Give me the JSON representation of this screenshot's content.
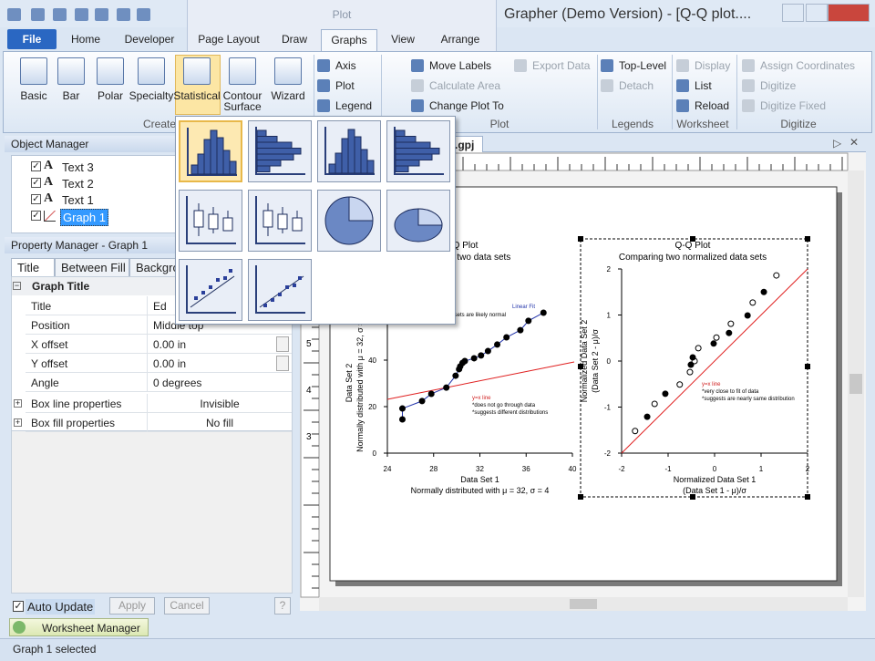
{
  "title_bar": {
    "context_tab": "Plot",
    "title": "Grapher (Demo Version) - [Q-Q plot...."
  },
  "tabs": [
    "File",
    "Home",
    "Developer",
    "Page Layout",
    "Draw",
    "Graphs",
    "View",
    "Arrange"
  ],
  "ribbon": {
    "create": {
      "buttons": [
        "Basic",
        "Bar",
        "Polar",
        "Specialty",
        "Statistical",
        "Contour Surface",
        "Wizard"
      ],
      "label": "Create"
    },
    "plot": {
      "items": [
        "Axis",
        "Plot",
        "Legend",
        "Move Labels",
        "Calculate Area",
        "Change Plot To",
        "Export Data"
      ],
      "label": "Plot"
    },
    "legends": {
      "items": [
        "Top-Level",
        "Detach"
      ],
      "label": "Legends"
    },
    "worksheet": {
      "items": [
        "Display",
        "List",
        "Reload"
      ],
      "label": "Worksheet"
    },
    "digitize": {
      "items": [
        "Assign Coordinates",
        "Digitize",
        "Digitize Fixed"
      ],
      "label": "Digitize"
    }
  },
  "object_manager": {
    "title": "Object Manager",
    "items": [
      "Text 3",
      "Text 2",
      "Text 1",
      "Graph 1"
    ]
  },
  "property_manager": {
    "title": "Property Manager - Graph 1",
    "tabs": [
      "Title",
      "Between Fill",
      "Backgro"
    ],
    "section": "Graph Title",
    "rows": [
      [
        "Title",
        "Ed"
      ],
      [
        "Position",
        "Middle top"
      ],
      [
        "X offset",
        "0.00 in"
      ],
      [
        "Y offset",
        "0.00 in"
      ],
      [
        "Angle",
        "0 degrees"
      ],
      [
        "Box line properties",
        "Invisible"
      ],
      [
        "Box fill properties",
        "No fill"
      ]
    ]
  },
  "bottom": {
    "auto_update": "Auto Update",
    "apply": "Apply",
    "cancel": "Cancel",
    "help": "?"
  },
  "worksheet_manager": "Worksheet Manager",
  "status": "Graph 1 selected",
  "document": {
    "tab": ".gpj",
    "ruler_left": [
      "5",
      "4",
      "3"
    ]
  },
  "plots": [
    {
      "type": "scatter",
      "title": "Q-Q Plot",
      "subtitle": "Comparing two data sets",
      "xlabel": "Data Set 1",
      "xlabel2": "Normally distributed with μ = 32, σ = 4",
      "ylabel": "Data Set 2",
      "ylabel2": "Normally distributed with μ = 32, σ = 4",
      "xlim": [
        24,
        40
      ],
      "xticks": [
        24,
        28,
        32,
        36,
        40
      ],
      "ylim": [
        0,
        60
      ],
      "yticks": [
        0,
        20,
        40,
        60
      ],
      "annotations": [
        "Linear Fit",
        "*data sets are likely normal",
        "y=x line",
        "*does not go through data",
        "*suggests different distributions"
      ],
      "series": [
        {
          "marker": "circle",
          "color": "#000000",
          "x": [
            25.3,
            25.3,
            27.0,
            27.8,
            29.1,
            29.9,
            30.2,
            30.3,
            30.5,
            30.7,
            31.5,
            32.1,
            32.7,
            33.5,
            34.3,
            35.5,
            36.2,
            37.5
          ],
          "y": [
            14.5,
            19.2,
            22.4,
            25.5,
            28.2,
            33.3,
            36.1,
            37.3,
            38.8,
            39.6,
            40.8,
            42.0,
            43.9,
            46.7,
            49.8,
            52.9,
            56.9,
            60.4
          ]
        }
      ]
    },
    {
      "type": "scatter",
      "title": "Q-Q Plot",
      "subtitle": "Comparing two normalized data sets",
      "xlabel": "Normalized Data Set 1",
      "xlabel2": "(Data Set 1 - μ)/σ",
      "ylabel": "Normalized Data Set 2",
      "ylabel2": "(Data Set 2 - μ)/σ",
      "xlim": [
        -2,
        2
      ],
      "xticks": [
        -2,
        -1,
        0,
        1,
        2
      ],
      "ylim": [
        -2,
        2
      ],
      "yticks": [
        -2,
        -1,
        0,
        1,
        2
      ],
      "annotations": [
        "y=x line",
        "*very close to fit of data",
        "*suggests are nearly same distribution"
      ],
      "series": [
        {
          "marker": "circle-open",
          "color": "#000000",
          "x": [
            -1.71,
            -1.29,
            -0.75,
            -0.53,
            -0.43,
            -0.35,
            0.04,
            0.35,
            0.82,
            1.33
          ],
          "y": [
            -1.52,
            -0.93,
            -0.51,
            -0.24,
            0,
            0.28,
            0.51,
            0.81,
            1.27,
            1.86
          ]
        },
        {
          "marker": "circle",
          "color": "#000000",
          "x": [
            -1.45,
            -1.06,
            -0.51,
            -0.47,
            -0.02,
            0.31,
            0.71,
            1.06
          ],
          "y": [
            -1.21,
            -0.71,
            -0.08,
            0.08,
            0.38,
            0.61,
            0.99,
            1.5
          ]
        }
      ]
    }
  ]
}
